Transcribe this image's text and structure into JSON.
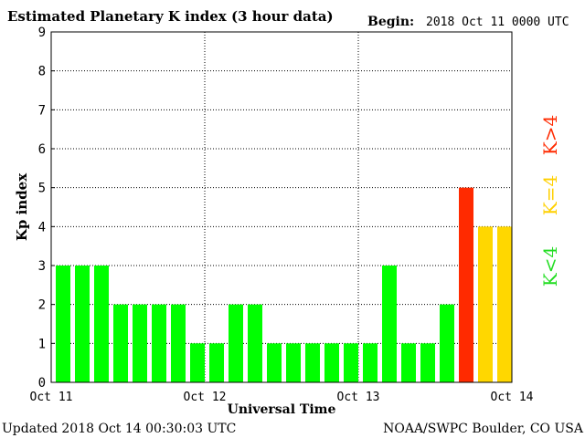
{
  "header": {
    "title": "Estimated Planetary K index (3 hour data)",
    "begin_label": "Begin:",
    "begin_value": "2018 Oct 11 0000 UTC"
  },
  "footer": {
    "updated": "Updated 2018 Oct 14 00:30:03 UTC",
    "source": "NOAA/SWPC Boulder, CO USA"
  },
  "legend": {
    "low": "K<4",
    "mid": "K=4",
    "high": "K>4"
  },
  "colors": {
    "low": "#00ff00",
    "mid": "#ffd700",
    "high": "#ff2a00",
    "axis": "#000000",
    "grid": "#000000"
  },
  "chart_data": {
    "type": "bar",
    "title": "Estimated Planetary K index (3 hour data)",
    "xlabel": "Universal Time",
    "ylabel": "Kp index",
    "ylim": [
      0,
      9
    ],
    "yticks": [
      "0",
      "1",
      "2",
      "3",
      "4",
      "5",
      "6",
      "7",
      "8",
      "9"
    ],
    "xticks": [
      "Oct 11",
      "Oct 12",
      "Oct 13",
      "Oct 14"
    ],
    "grid": true,
    "values": [
      3,
      3,
      3,
      2,
      2,
      2,
      2,
      1,
      1,
      2,
      2,
      1,
      1,
      1,
      1,
      1,
      1,
      3,
      1,
      1,
      2,
      5,
      4,
      4
    ]
  }
}
